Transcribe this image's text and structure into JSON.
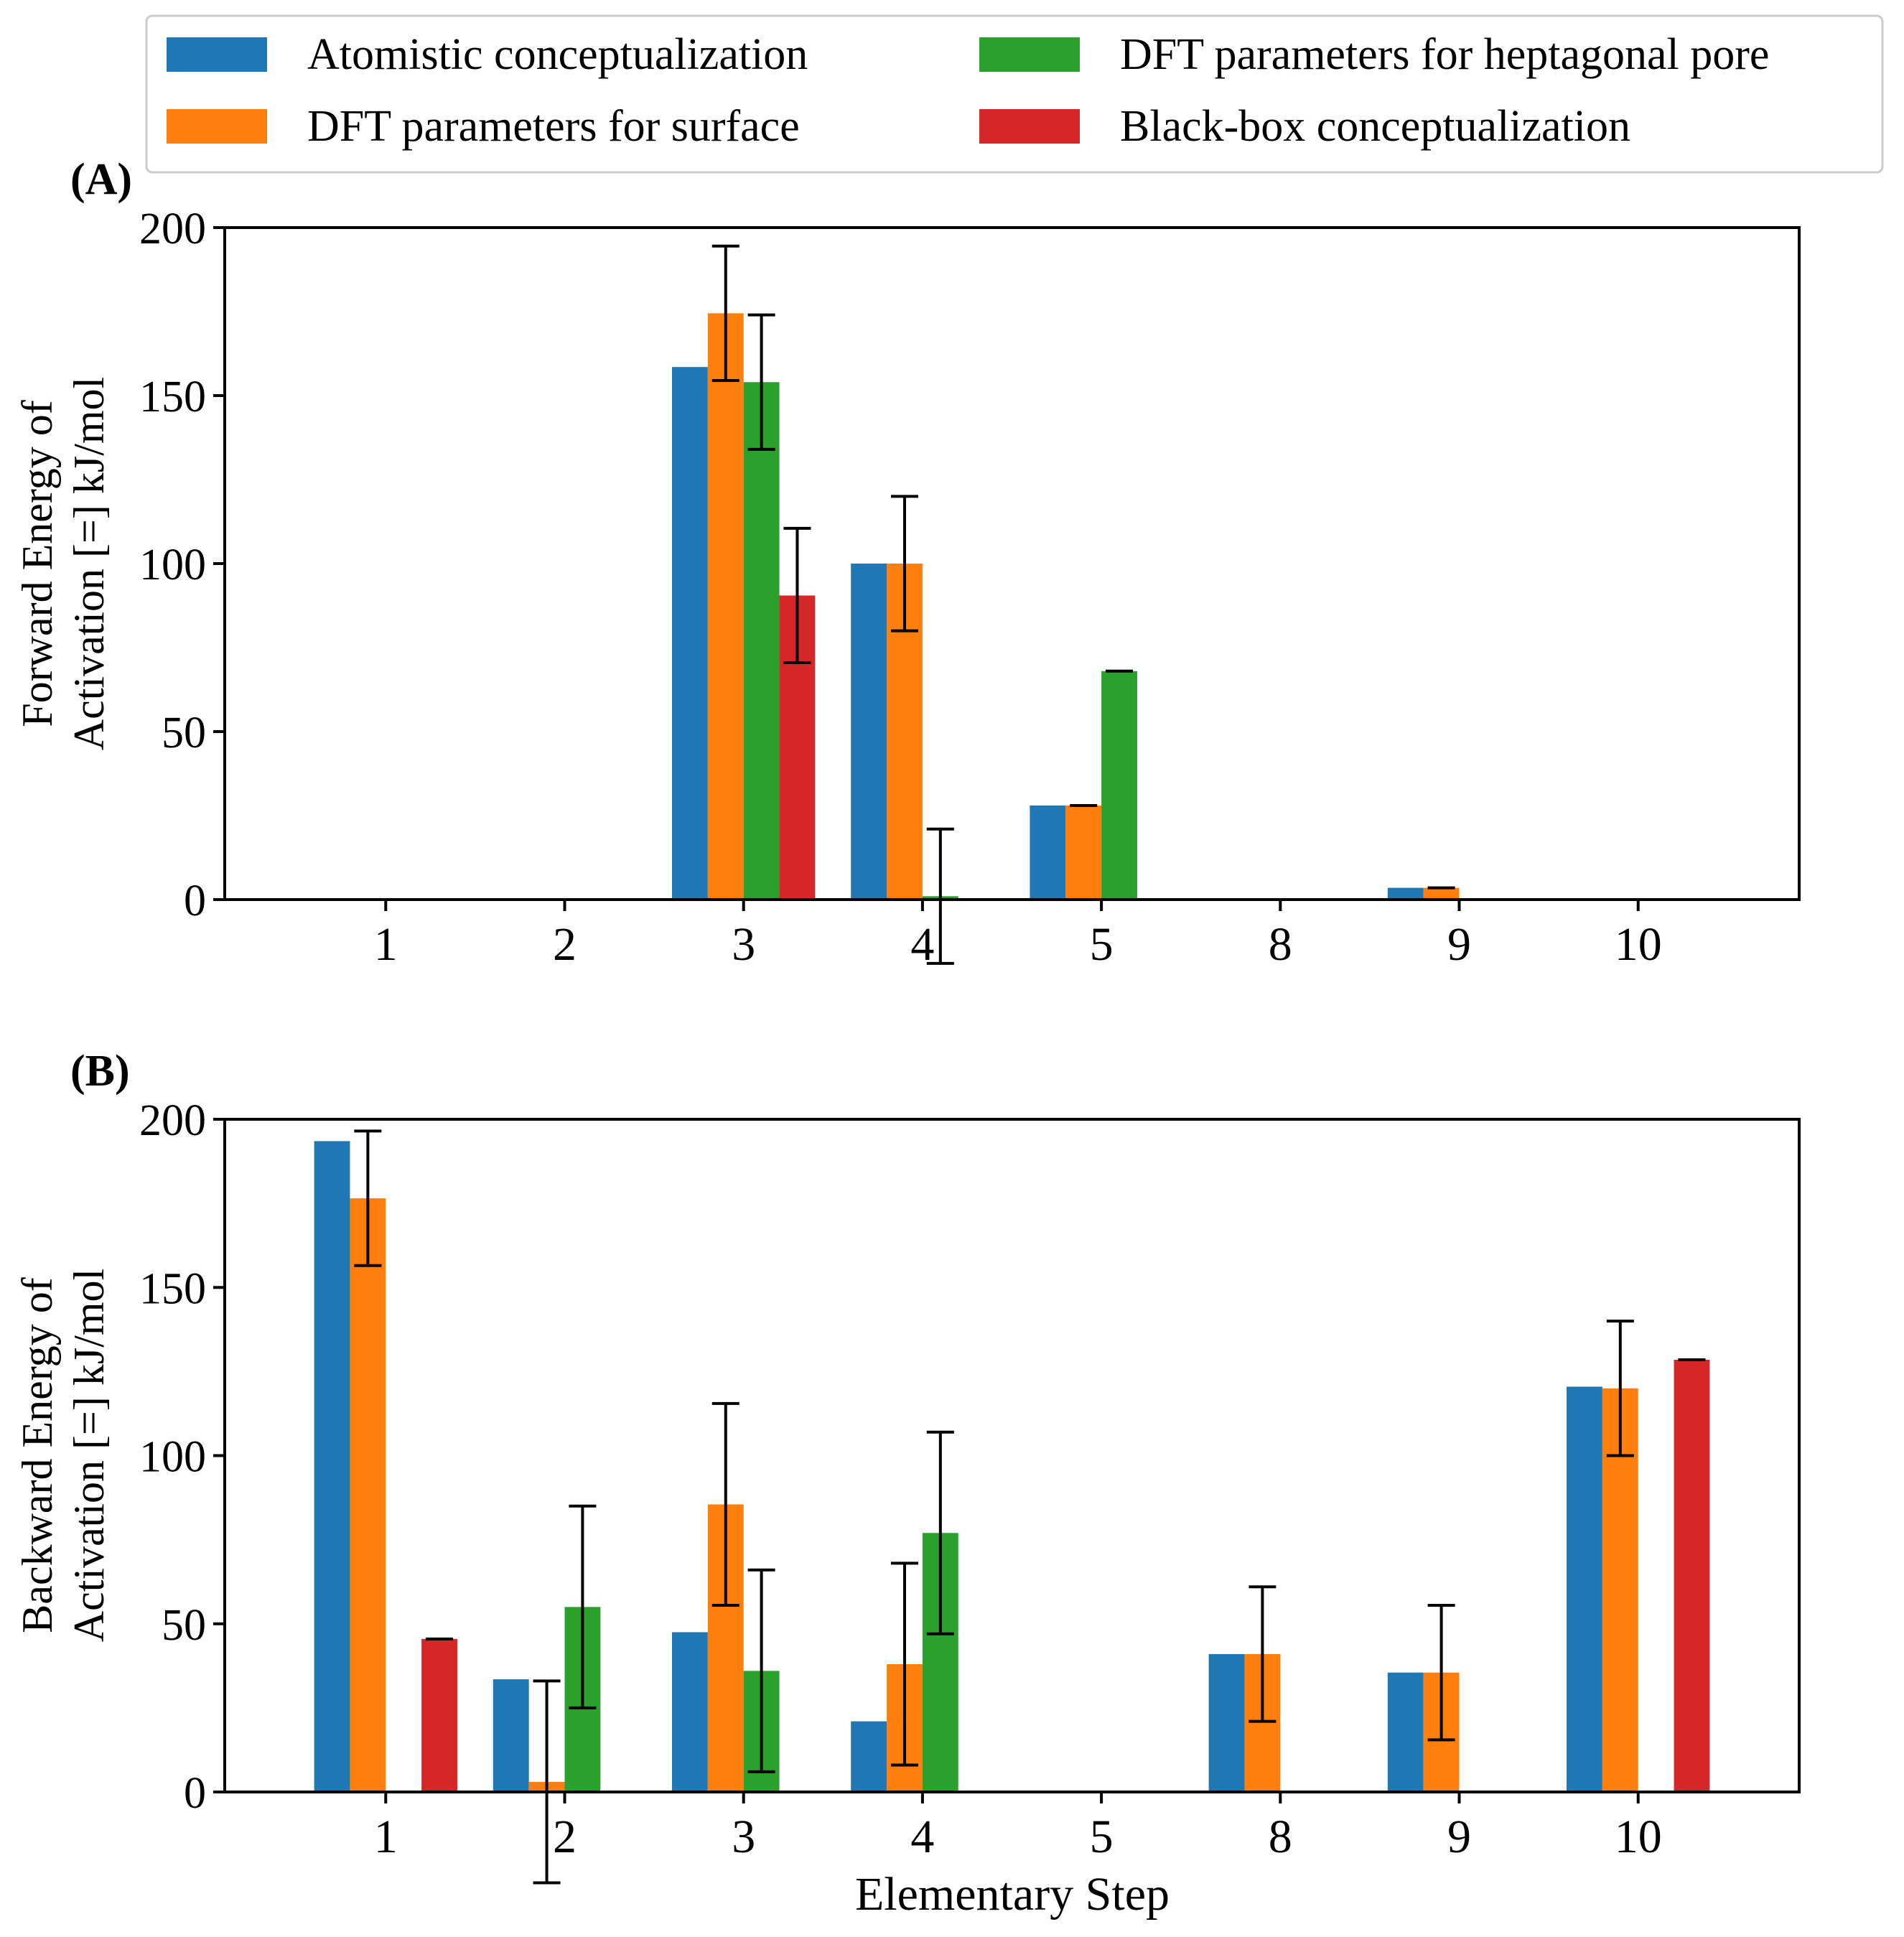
{
  "legend": {
    "entries": [
      {
        "label": "Atomistic conceptualization",
        "color": "#1f77b4"
      },
      {
        "label": "DFT parameters for surface",
        "color": "#ff7f0e"
      },
      {
        "label": "DFT parameters for heptagonal pore",
        "color": "#2ca02c"
      },
      {
        "label": "Black-box conceptualization",
        "color": "#d62728"
      }
    ]
  },
  "xlabel": "Elementary Step",
  "chart_data": [
    {
      "type": "bar",
      "panel_label": "(A)",
      "ylabel_line1": "Forward Energy of",
      "ylabel_line2": "Activation [=] kJ/mol",
      "categories": [
        "1",
        "2",
        "3",
        "4",
        "5",
        "8",
        "9",
        "10"
      ],
      "ylim": [
        0,
        200
      ],
      "yticks": [
        0,
        50,
        100,
        150,
        200
      ],
      "series": [
        {
          "name": "Atomistic conceptualization",
          "color": "#1f77b4",
          "values": [
            0,
            0,
            158.5,
            100,
            28,
            0,
            3.5,
            0
          ],
          "errors": [
            null,
            null,
            null,
            null,
            null,
            null,
            null,
            null
          ]
        },
        {
          "name": "DFT parameters for surface",
          "color": "#ff7f0e",
          "values": [
            0,
            0,
            174.5,
            100,
            28,
            0,
            3.5,
            0
          ],
          "errors": [
            null,
            null,
            20,
            20,
            0,
            null,
            0,
            null
          ]
        },
        {
          "name": "DFT parameters for heptagonal pore",
          "color": "#2ca02c",
          "values": [
            0,
            0,
            154,
            1,
            68,
            0,
            0,
            0
          ],
          "errors": [
            null,
            null,
            20,
            20,
            0,
            null,
            null,
            null
          ]
        },
        {
          "name": "Black-box conceptualization",
          "color": "#d62728",
          "values": [
            0,
            0,
            90.5,
            0,
            0,
            0,
            0,
            0
          ],
          "errors": [
            null,
            null,
            20,
            null,
            null,
            null,
            null,
            null
          ]
        }
      ]
    },
    {
      "type": "bar",
      "panel_label": "(B)",
      "ylabel_line1": "Backward Energy of",
      "ylabel_line2": "Activation [=] kJ/mol",
      "categories": [
        "1",
        "2",
        "3",
        "4",
        "5",
        "8",
        "9",
        "10"
      ],
      "ylim": [
        0,
        200
      ],
      "yticks": [
        0,
        50,
        100,
        150,
        200
      ],
      "series": [
        {
          "name": "Atomistic conceptualization",
          "color": "#1f77b4",
          "values": [
            193.5,
            33.5,
            47.5,
            21,
            0,
            41,
            35.5,
            120.5
          ],
          "errors": [
            null,
            null,
            null,
            null,
            null,
            null,
            null,
            null
          ]
        },
        {
          "name": "DFT parameters for surface",
          "color": "#ff7f0e",
          "values": [
            176.5,
            3,
            85.5,
            38,
            0,
            41,
            35.5,
            120
          ],
          "errors": [
            20,
            30,
            30,
            30,
            null,
            20,
            20,
            20
          ]
        },
        {
          "name": "DFT parameters for heptagonal pore",
          "color": "#2ca02c",
          "values": [
            0,
            55,
            36,
            77,
            0,
            0,
            0,
            0
          ],
          "errors": [
            null,
            30,
            30,
            30,
            null,
            null,
            null,
            null
          ]
        },
        {
          "name": "Black-box conceptualization",
          "color": "#d62728",
          "values": [
            45.5,
            0,
            0,
            0,
            0,
            0,
            0,
            128.5
          ],
          "errors": [
            0,
            null,
            null,
            null,
            null,
            null,
            null,
            0
          ]
        }
      ]
    }
  ]
}
